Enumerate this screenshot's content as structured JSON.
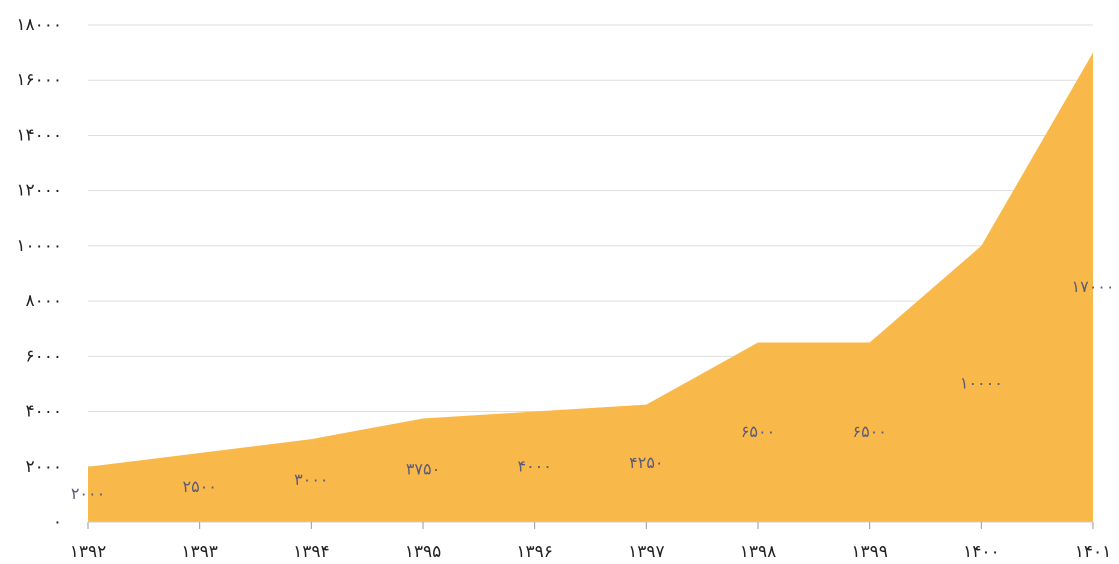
{
  "chart_data": {
    "type": "area",
    "categories": [
      "۱۳۹۲",
      "۱۳۹۳",
      "۱۳۹۴",
      "۱۳۹۵",
      "۱۳۹۶",
      "۱۳۹۷",
      "۱۳۹۸",
      "۱۳۹۹",
      "۱۴۰۰",
      "۱۴۰۱"
    ],
    "values": [
      2000,
      2500,
      3000,
      3750,
      4000,
      4250,
      6500,
      6500,
      10000,
      17000
    ],
    "value_labels": [
      "۲۰۰۰",
      "۲۵۰۰",
      "۳۰۰۰",
      "۳۷۵۰",
      "۴۰۰۰",
      "۴۲۵۰",
      "۶۵۰۰",
      "۶۵۰۰",
      "۱۰۰۰۰",
      "۱۷۰۰۰"
    ],
    "color": "#f9b94a",
    "ylim": [
      0,
      18000
    ],
    "yticks": [
      {
        "value": 0,
        "label": "۰"
      },
      {
        "value": 2000,
        "label": "۲۰۰۰"
      },
      {
        "value": 4000,
        "label": "۴۰۰۰"
      },
      {
        "value": 6000,
        "label": "۶۰۰۰"
      },
      {
        "value": 8000,
        "label": "۸۰۰۰"
      },
      {
        "value": 10000,
        "label": "۱۰۰۰۰"
      },
      {
        "value": 12000,
        "label": "۱۲۰۰۰"
      },
      {
        "value": 14000,
        "label": "۱۴۰۰۰"
      },
      {
        "value": 16000,
        "label": "۱۶۰۰۰"
      },
      {
        "value": 18000,
        "label": "۱۸۰۰۰"
      }
    ],
    "grid": true
  }
}
